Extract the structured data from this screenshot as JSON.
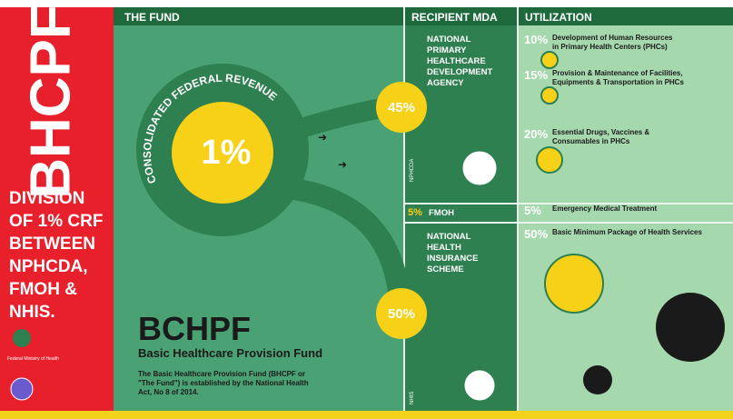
{
  "side_panel": {
    "title": "BHCPF",
    "lines": [
      "DIVISION",
      "OF 1% CRF",
      "BETWEEN",
      "NPHCDA,",
      "FMOH &",
      "NHIS."
    ],
    "logo_caption": "Federal Ministry of Health"
  },
  "headers": {
    "fund": "THE FUND",
    "recipient": "RECIPIENT MDA",
    "utilization": "UTILIZATION"
  },
  "fund": {
    "source": "CONSOLIDATED FEDERAL REVENUE",
    "share": "1%",
    "branch_top": "45%",
    "branch_bottom": "50%",
    "name": "BCHPF",
    "full_name": "Basic Healthcare Provision Fund",
    "description": [
      "The Basic Healthcare Provision Fund (BHCPF or",
      "\"The Fund\") is established by the National Health",
      "Act, No 8 of 2014."
    ]
  },
  "recipients": [
    {
      "lines": [
        "NATIONAL",
        "PRIMARY",
        "HEALTHCARE",
        "DEVELOPMENT",
        "AGENCY"
      ],
      "tag": "NPHCDA"
    },
    {
      "share": "5%",
      "lines": [
        "FMOH"
      ]
    },
    {
      "lines": [
        "NATIONAL",
        "HEALTH",
        "INSURANCE",
        "SCHEME"
      ],
      "tag": "NHIS"
    }
  ],
  "utilization": [
    {
      "share": "10%",
      "lines": [
        "Development of Human Resources",
        "in Primary Health Centers (PHCs)"
      ]
    },
    {
      "share": "15%",
      "lines": [
        "Provision & Maintenance of Facilities,",
        "Equipments & Transportation in PHCs"
      ]
    },
    {
      "share": "20%",
      "lines": [
        "Essential Drugs, Vaccines &",
        "Consumables in PHCs"
      ]
    },
    {
      "share": "5%",
      "lines": [
        "Emergency Medical Treatment"
      ]
    },
    {
      "share": "50%",
      "lines": [
        "Basic Minimum Package of Health Services"
      ]
    }
  ]
}
